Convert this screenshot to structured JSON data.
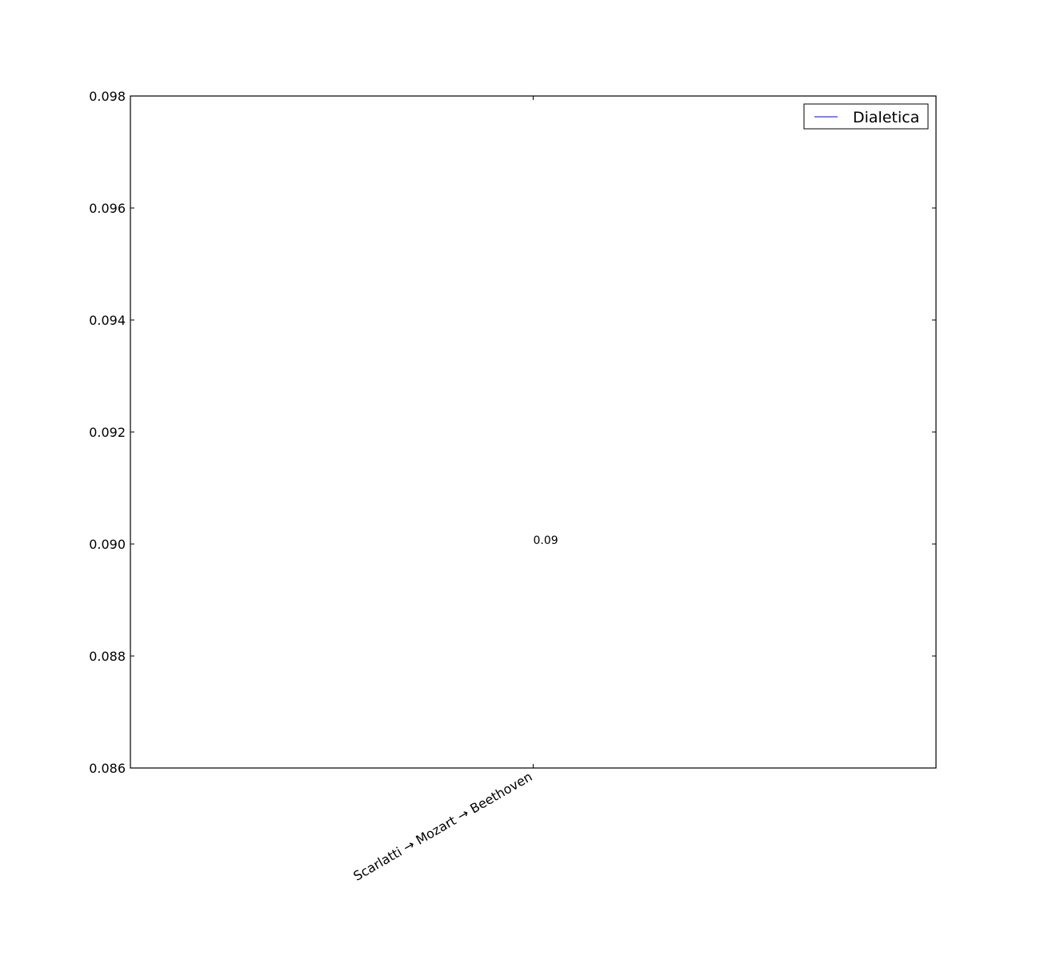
{
  "chart_data": {
    "type": "line",
    "title": "",
    "xlabel": "",
    "ylabel": "",
    "categories": [
      "Scarlatti → Mozart → Beethoven"
    ],
    "series": [
      {
        "name": "Dialetica",
        "values": [
          0.09
        ],
        "color": "#0000ff"
      }
    ],
    "data_labels": [
      "0.09"
    ],
    "ylim": [
      0.086,
      0.098
    ],
    "yticks": [
      0.086,
      0.088,
      0.09,
      0.092,
      0.094,
      0.096,
      0.098
    ],
    "ytick_labels": [
      "0.086",
      "0.088",
      "0.090",
      "0.092",
      "0.094",
      "0.096",
      "0.098"
    ],
    "grid": false,
    "legend_position": "top-right"
  }
}
